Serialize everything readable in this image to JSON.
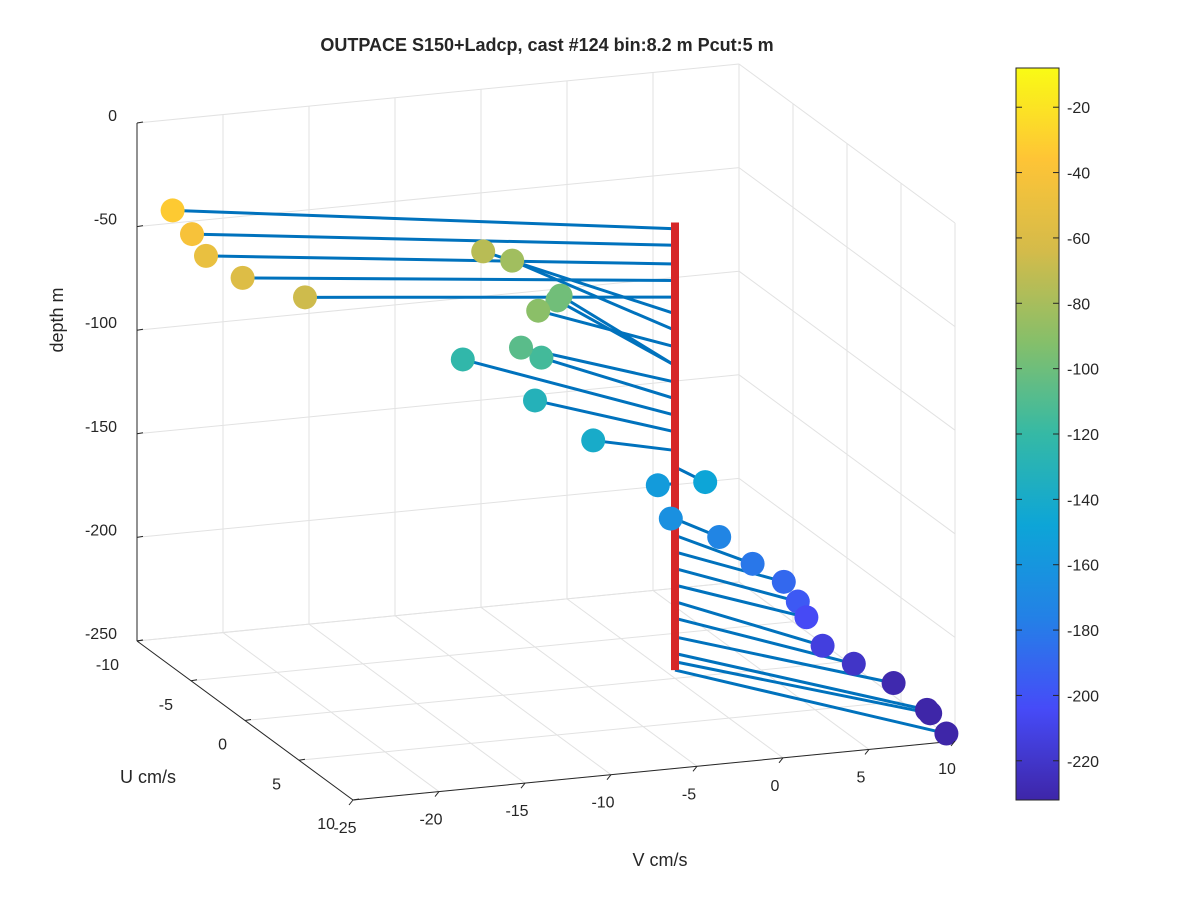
{
  "chart_data": {
    "type": "scatter",
    "title": "OUTPACE S150+Ladcp, cast #124 bin:8.2 m  Pcut:5 m",
    "xlabel": "V cm/s",
    "ylabel": "U cm/s",
    "zlabel": "depth m",
    "xlim": [
      -25,
      10
    ],
    "ylim": [
      -10,
      10
    ],
    "zlim": [
      -250,
      0
    ],
    "x_ticks": [
      "-25",
      "-20",
      "-15",
      "-10",
      "-5",
      "0",
      "5",
      "10"
    ],
    "y_ticks": [
      "-10",
      "-5",
      "0",
      "5",
      "10"
    ],
    "z_ticks": [
      "0",
      "-50",
      "-100",
      "-150",
      "-200",
      "-250"
    ],
    "grid": true,
    "colorbar": {
      "range": [
        -232,
        -8
      ],
      "ticks": [
        "-20",
        "-40",
        "-60",
        "-80",
        "-100",
        "-120",
        "-140",
        "-160",
        "-180",
        "-200",
        "-220"
      ],
      "tick_values": [
        -20,
        -40,
        -60,
        -80,
        -100,
        -120,
        -140,
        -160,
        -180,
        -200,
        -220
      ]
    },
    "stick_line": {
      "color": "#d62728",
      "z_range": [
        -30,
        -246
      ]
    },
    "stick_color": "#0072bd",
    "points": [
      {
        "z": -33,
        "u": -7.5,
        "v": -24.5
      },
      {
        "z": -41,
        "u": -6.5,
        "v": -24.0
      },
      {
        "z": -50,
        "u": -6.0,
        "v": -23.5
      },
      {
        "z": -58,
        "u": -5.0,
        "v": -22.0
      },
      {
        "z": -66,
        "u": -4.0,
        "v": -19.0
      },
      {
        "z": -74,
        "u": -9.0,
        "v": -5.5
      },
      {
        "z": -82,
        "u": -9.5,
        "v": -3.5
      },
      {
        "z": -90,
        "u": -5.5,
        "v": -4.5
      },
      {
        "z": -99,
        "u": -8.5,
        "v": -1.5
      },
      {
        "z": -99,
        "u": -9.0,
        "v": -1.0
      },
      {
        "z": -107,
        "u": -5.5,
        "v": -5.5
      },
      {
        "z": -115,
        "u": -6.0,
        "v": -4.0
      },
      {
        "z": -123,
        "u": -8.5,
        "v": -7.0
      },
      {
        "z": -131,
        "u": -5.0,
        "v": -5.0
      },
      {
        "z": -140,
        "u": -2.0,
        "v": -3.5
      },
      {
        "z": -148,
        "u": 2.0,
        "v": 0.5
      },
      {
        "z": -156,
        "u": 0.0,
        "v": -1.0
      },
      {
        "z": -164,
        "u": 2.0,
        "v": -1.5
      },
      {
        "z": -173,
        "u": 2.5,
        "v": 1.0
      },
      {
        "z": -181,
        "u": 4.0,
        "v": 2.0
      },
      {
        "z": -189,
        "u": 4.5,
        "v": 3.5
      },
      {
        "z": -197,
        "u": 5.0,
        "v": 4.0
      },
      {
        "z": -205,
        "u": 5.0,
        "v": 4.5
      },
      {
        "z": -213,
        "u": 6.5,
        "v": 4.5
      },
      {
        "z": -221,
        "u": 7.0,
        "v": 6.0
      },
      {
        "z": -230,
        "u": 7.5,
        "v": 8.0
      },
      {
        "z": -238,
        "u": 9.0,
        "v": 9.0
      },
      {
        "z": -242,
        "u": 8.5,
        "v": 9.5
      },
      {
        "z": -246,
        "u": 10.0,
        "v": 9.5
      }
    ]
  }
}
